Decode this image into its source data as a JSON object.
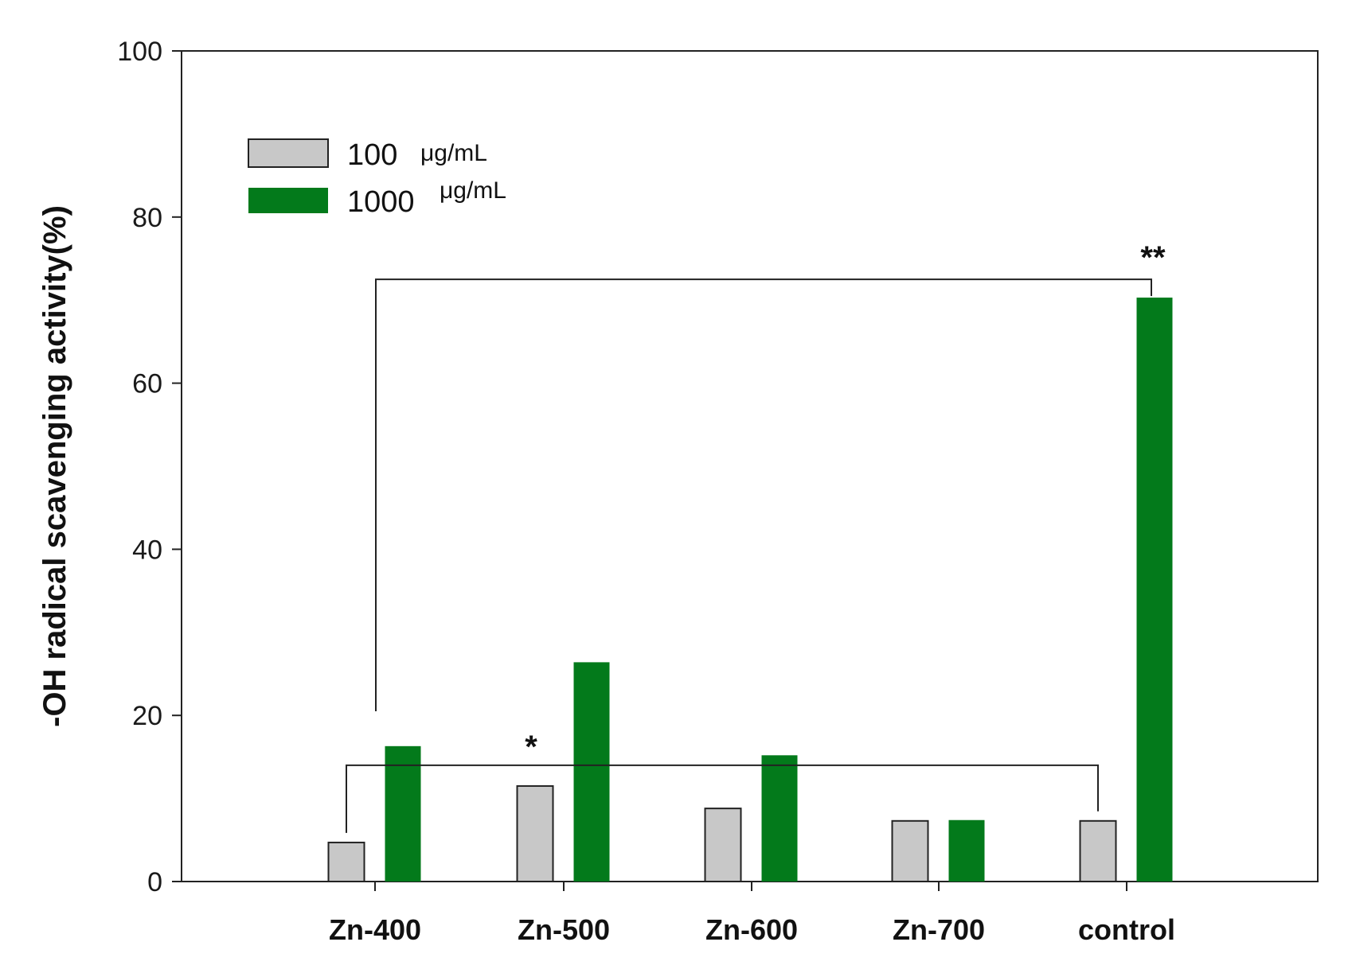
{
  "chart_data": {
    "type": "bar",
    "title": "",
    "xlabel": "",
    "ylabel": "-OH radical scavenging activity(%)",
    "ylim": [
      0,
      100
    ],
    "yticks": [
      "0",
      "20",
      "40",
      "60",
      "80",
      "100"
    ],
    "grid": false,
    "legend_position": "top-left",
    "categories": [
      "Zn-400",
      "Zn-500",
      "Zn-600",
      "Zn-700",
      "control"
    ],
    "series": [
      {
        "name": "100",
        "unit": "μg/mL",
        "color": "#c8c8c8",
        "values": [
          4.7,
          11.5,
          8.8,
          7.3,
          7.3
        ]
      },
      {
        "name": "1000",
        "unit": "μg/mL",
        "color": "#037a1b",
        "values": [
          16.3,
          26.4,
          15.2,
          7.4,
          70.3
        ]
      }
    ],
    "annotations": [
      {
        "text": "*",
        "from": "Zn-400",
        "to": "control",
        "y": 14
      },
      {
        "text": "**",
        "from": "Zn-400",
        "to": "control",
        "y": 72.5
      }
    ]
  }
}
